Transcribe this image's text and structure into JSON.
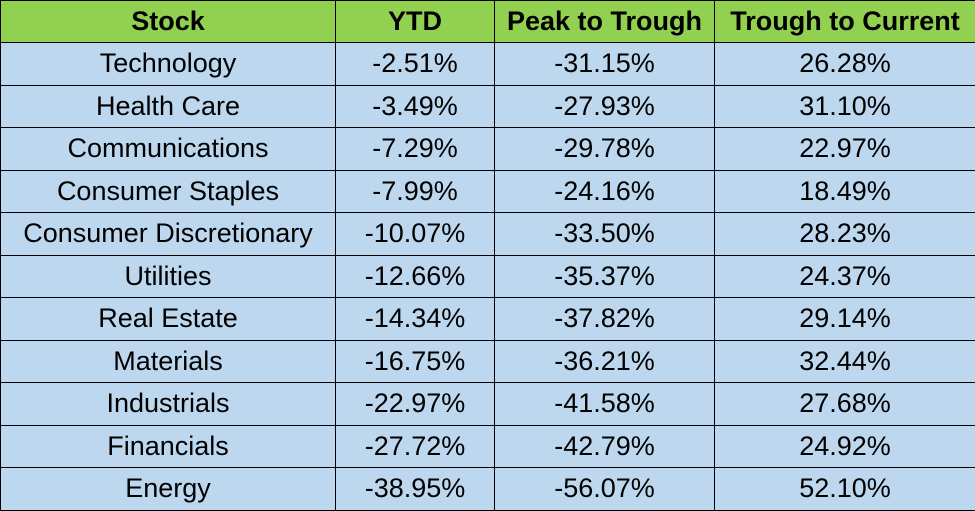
{
  "colors": {
    "header_bg": "#92d050",
    "row_bg": "#bdd7ee",
    "border": "#000000"
  },
  "chart_data": {
    "type": "table",
    "columns": [
      "Stock",
      "YTD",
      "Peak to Trough",
      "Trough to Current"
    ],
    "rows": [
      [
        "Technology",
        "-2.51%",
        "-31.15%",
        "26.28%"
      ],
      [
        "Health Care",
        "-3.49%",
        "-27.93%",
        "31.10%"
      ],
      [
        "Communications",
        "-7.29%",
        "-29.78%",
        "22.97%"
      ],
      [
        "Consumer Staples",
        "-7.99%",
        "-24.16%",
        "18.49%"
      ],
      [
        "Consumer Discretionary",
        "-10.07%",
        "-33.50%",
        "28.23%"
      ],
      [
        "Utilities",
        "-12.66%",
        "-35.37%",
        "24.37%"
      ],
      [
        "Real Estate",
        "-14.34%",
        "-37.82%",
        "29.14%"
      ],
      [
        "Materials",
        "-16.75%",
        "-36.21%",
        "32.44%"
      ],
      [
        "Industrials",
        "-22.97%",
        "-41.58%",
        "27.68%"
      ],
      [
        "Financials",
        "-27.72%",
        "-42.79%",
        "24.92%"
      ],
      [
        "Energy",
        "-38.95%",
        "-56.07%",
        "52.10%"
      ]
    ]
  }
}
